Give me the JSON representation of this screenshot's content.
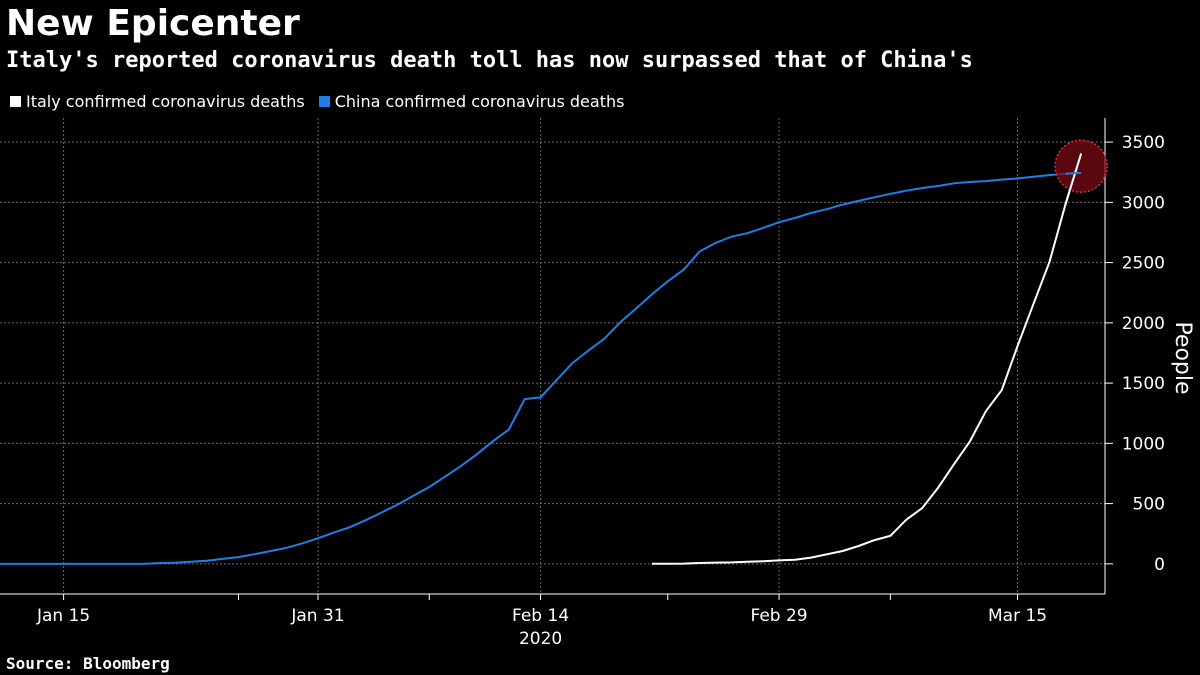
{
  "chart_data": {
    "type": "line",
    "title": "New Epicenter",
    "subtitle": "Italy's reported coronavirus death toll has now surpassed that of China's",
    "xlabel": "2020",
    "ylabel": "People",
    "ylim": [
      -300,
      3700
    ],
    "y_ticks": [
      0,
      500,
      1000,
      1500,
      2000,
      2500,
      3000,
      3500
    ],
    "x_tick_labels": [
      {
        "day": 15,
        "label": "Jan 15"
      },
      {
        "day": 31,
        "label": "Jan 31"
      },
      {
        "day": 45,
        "label": "Feb 14"
      },
      {
        "day": 60,
        "label": "Feb 29"
      },
      {
        "day": 75,
        "label": "Mar 15"
      }
    ],
    "x_minor_ticks": [
      26,
      38,
      53,
      67
    ],
    "x_range_day_of_year": [
      11,
      80.5
    ],
    "series": [
      {
        "name": "Italy confirmed coronavirus deaths",
        "color": "#ffffff",
        "x": [
          52,
          53,
          54,
          55,
          56,
          57,
          58,
          59,
          60,
          61,
          62,
          63,
          64,
          65,
          66,
          67,
          68,
          69,
          70,
          71,
          72,
          73,
          74,
          75,
          76,
          77,
          78,
          79
        ],
        "values": [
          1,
          1,
          2,
          7,
          10,
          12,
          17,
          21,
          29,
          34,
          52,
          79,
          107,
          148,
          197,
          233,
          366,
          463,
          631,
          827,
          1016,
          1266,
          1441,
          1809,
          2158,
          2503,
          2978,
          3405
        ]
      },
      {
        "name": "China confirmed coronavirus deaths",
        "color": "#1f7fe6",
        "x": [
          11,
          12,
          13,
          14,
          15,
          16,
          17,
          18,
          19,
          20,
          21,
          22,
          23,
          24,
          25,
          26,
          27,
          28,
          29,
          30,
          31,
          32,
          33,
          34,
          35,
          36,
          37,
          38,
          39,
          40,
          41,
          42,
          43,
          44,
          45,
          46,
          47,
          48,
          49,
          50,
          51,
          52,
          53,
          54,
          55,
          56,
          57,
          58,
          59,
          60,
          61,
          62,
          63,
          64,
          65,
          66,
          67,
          68,
          69,
          70,
          71,
          72,
          73,
          74,
          75,
          76,
          77,
          78,
          79
        ],
        "values": [
          0,
          0,
          0,
          0,
          0,
          0,
          0,
          0,
          0,
          0,
          6,
          9,
          17,
          25,
          41,
          56,
          80,
          106,
          132,
          170,
          213,
          259,
          304,
          362,
          426,
          492,
          565,
          638,
          724,
          813,
          910,
          1018,
          1115,
          1367,
          1381,
          1524,
          1666,
          1770,
          1868,
          2004,
          2118,
          2236,
          2345,
          2442,
          2592,
          2663,
          2715,
          2744,
          2788,
          2835,
          2870,
          2912,
          2943,
          2981,
          3012,
          3042,
          3070,
          3097,
          3119,
          3136,
          3158,
          3169,
          3176,
          3189,
          3199,
          3213,
          3226,
          3237,
          3245
        ]
      }
    ],
    "highlight": {
      "day": 79,
      "value": 3300,
      "color": "#7a0a14"
    },
    "legend_position": "top-left",
    "grid": true
  },
  "footer": {
    "source": "Source: Bloomberg"
  }
}
